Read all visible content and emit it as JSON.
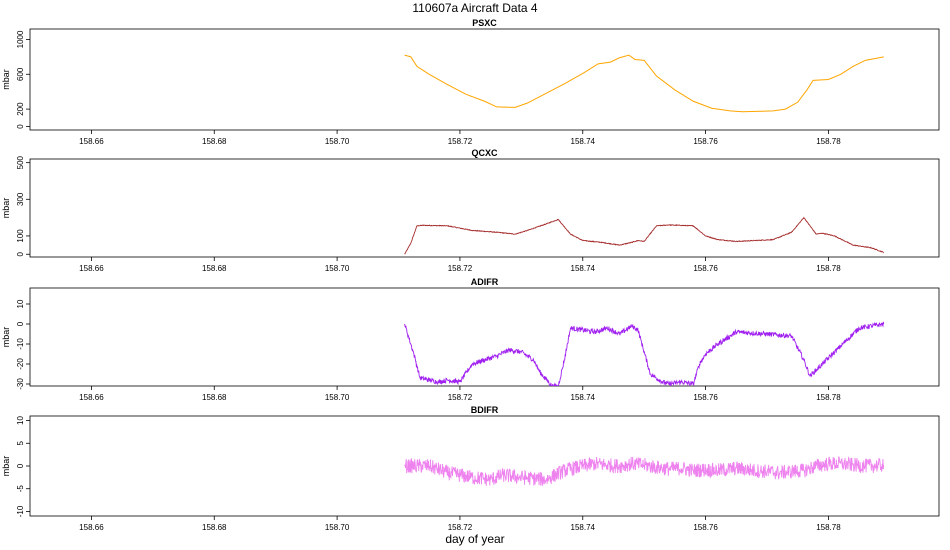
{
  "title": "110607a   Aircraft Data 4",
  "chart_data": {
    "type": "line",
    "xlabel": "day of year",
    "xlim": [
      158.65,
      158.798
    ],
    "xticks": [
      "158.66",
      "158.68",
      "158.70",
      "158.72",
      "158.74",
      "158.76",
      "158.78"
    ],
    "xtick_values": [
      158.66,
      158.68,
      158.7,
      158.72,
      158.74,
      158.76,
      158.78
    ],
    "panels": [
      {
        "title": "PSXC",
        "ylabel": "mbar",
        "color": "#FFA500",
        "ylim": [
          -40,
          1120
        ],
        "yticks": [
          "0",
          "200",
          "600",
          "1000"
        ],
        "ytick_values": [
          0,
          200,
          600,
          1000
        ],
        "noise": 0,
        "x": [
          158.711,
          158.712,
          158.713,
          158.715,
          158.718,
          158.721,
          158.724,
          158.726,
          158.729,
          158.731,
          158.734,
          158.737,
          158.74,
          158.7425,
          158.7445,
          158.746,
          158.7475,
          158.7485,
          158.75,
          158.752,
          158.755,
          158.758,
          158.761,
          158.764,
          158.766,
          158.769,
          158.771,
          158.773,
          158.775,
          158.7765,
          158.7775,
          158.78,
          158.782,
          158.784,
          158.786,
          158.789
        ],
        "y": [
          820,
          800,
          690,
          600,
          480,
          370,
          290,
          225,
          220,
          270,
          380,
          490,
          610,
          720,
          740,
          790,
          820,
          770,
          760,
          580,
          420,
          290,
          210,
          180,
          170,
          175,
          180,
          200,
          280,
          420,
          530,
          540,
          600,
          690,
          760,
          800
        ]
      },
      {
        "title": "QCXC",
        "ylabel": "mbar",
        "color": "#A52A2A",
        "ylim": [
          -15,
          520
        ],
        "yticks": [
          "0",
          "100",
          "300",
          "500"
        ],
        "ytick_values": [
          0,
          100,
          300,
          500
        ],
        "noise": 2,
        "x": [
          158.711,
          158.712,
          158.713,
          158.714,
          158.718,
          158.722,
          158.726,
          158.729,
          158.731,
          158.734,
          158.736,
          158.738,
          158.74,
          158.743,
          158.746,
          158.748,
          158.749,
          158.75,
          158.752,
          158.754,
          158.758,
          158.76,
          158.762,
          158.765,
          158.768,
          158.771,
          158.774,
          158.776,
          158.778,
          158.779,
          158.781,
          158.784,
          158.787,
          158.789
        ],
        "y": [
          0,
          60,
          155,
          158,
          155,
          130,
          120,
          110,
          130,
          165,
          190,
          110,
          75,
          65,
          50,
          65,
          75,
          70,
          155,
          160,
          155,
          100,
          80,
          70,
          75,
          80,
          120,
          200,
          110,
          115,
          100,
          50,
          35,
          10
        ]
      },
      {
        "title": "ADIFR",
        "ylabel": "mbar",
        "color": "#A020F0",
        "ylim": [
          -31,
          18
        ],
        "yticks": [
          "-30",
          "-20",
          "-10",
          "0",
          "10"
        ],
        "ytick_values": [
          -30,
          -20,
          -10,
          0,
          10
        ],
        "noise": 1.2,
        "x": [
          158.711,
          158.7125,
          158.7135,
          158.715,
          158.7165,
          158.718,
          158.72,
          158.722,
          158.726,
          158.728,
          158.73,
          158.732,
          158.733,
          158.735,
          158.736,
          158.737,
          158.738,
          158.742,
          158.744,
          158.746,
          158.748,
          158.749,
          158.751,
          158.753,
          158.754,
          158.756,
          158.758,
          158.759,
          158.76,
          158.762,
          158.765,
          158.77,
          158.774,
          158.776,
          158.777,
          158.779,
          158.781,
          158.783,
          158.785,
          158.787,
          158.789
        ],
        "y": [
          0,
          -15,
          -27,
          -28,
          -29,
          -28,
          -29,
          -20,
          -16,
          -13,
          -14,
          -18,
          -24,
          -31,
          -31,
          -18,
          -2,
          -4,
          -2,
          -5,
          -1,
          -3,
          -25,
          -29,
          -30,
          -29,
          -30,
          -20,
          -15,
          -10,
          -4,
          -5,
          -6,
          -18,
          -26,
          -20,
          -14,
          -8,
          -2,
          -1,
          0
        ]
      },
      {
        "title": "BDIFR",
        "ylabel": "mbar",
        "color": "#EE82EE",
        "ylim": [
          -11,
          11
        ],
        "yticks": [
          "-10",
          "-5",
          "0",
          "5",
          "10"
        ],
        "ytick_values": [
          -10,
          -5,
          0,
          5,
          10
        ],
        "noise": 1.6,
        "x": [
          158.711,
          158.715,
          158.718,
          158.722,
          158.725,
          158.727,
          158.73,
          158.734,
          158.737,
          158.74,
          158.742,
          158.744,
          158.746,
          158.748,
          158.75,
          158.752,
          158.754,
          158.756,
          158.758,
          158.76,
          158.762,
          158.765,
          158.768,
          158.77,
          158.772,
          158.774,
          158.776,
          158.778,
          158.78,
          158.782,
          158.784,
          158.786,
          158.789
        ],
        "y": [
          0,
          0,
          -1.5,
          -2.5,
          -3,
          -2,
          -2.5,
          -3,
          -1,
          0,
          0.5,
          0.2,
          0,
          0.5,
          0.2,
          -0.3,
          -0.6,
          -0.5,
          -1,
          -0.8,
          -1,
          -0.5,
          -1,
          -1.2,
          -1.5,
          -1.2,
          -1,
          0,
          0.5,
          0.5,
          0.2,
          0,
          0.2
        ]
      }
    ]
  }
}
